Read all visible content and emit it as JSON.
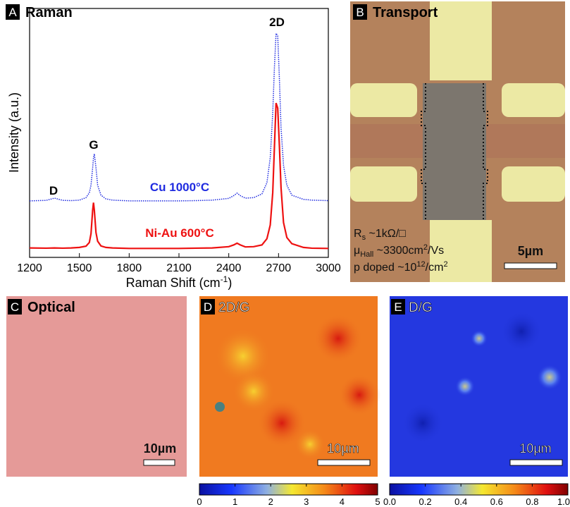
{
  "chart_data": {
    "type": "line",
    "panel": "A",
    "title": "Raman",
    "ylabel": "Intensity (a.u.)",
    "xlabel": [
      "Raman Shift (cm",
      "-1",
      ")"
    ],
    "xlim": [
      1200,
      3000
    ],
    "xticks": [
      1200,
      1500,
      1800,
      2100,
      2400,
      2700,
      3000
    ],
    "ylim": [
      0,
      100
    ],
    "annotations": [
      "D",
      "G",
      "2D"
    ],
    "x": [
      1200,
      1300,
      1350,
      1400,
      1450,
      1500,
      1540,
      1560,
      1570,
      1580,
      1585,
      1590,
      1600,
      1610,
      1630,
      1660,
      1700,
      1800,
      1900,
      2000,
      2100,
      2200,
      2300,
      2400,
      2430,
      2450,
      2470,
      2500,
      2550,
      2600,
      2630,
      2650,
      2665,
      2675,
      2685,
      2695,
      2705,
      2715,
      2730,
      2750,
      2780,
      2850,
      2900,
      3000
    ],
    "series": [
      {
        "name": "Cu 1000°C",
        "color": "#1f2be0",
        "linestyle": "dotted",
        "values": [
          22.7,
          22.9,
          23.8,
          22.9,
          22.8,
          23.0,
          24,
          26,
          29,
          36,
          40,
          41.6,
          36,
          29,
          25,
          23.5,
          23.0,
          22.7,
          22.7,
          22.7,
          22.7,
          22.8,
          23.0,
          23.7,
          24.8,
          25.8,
          24.8,
          23.8,
          24.0,
          25.5,
          30,
          40,
          58,
          76,
          90,
          89,
          72,
          52,
          37,
          29,
          25,
          23.3,
          23,
          22.8
        ]
      },
      {
        "name": "Ni-Au 600°C",
        "color": "#ee1111",
        "linestyle": "solid",
        "values": [
          3.8,
          3.7,
          3.8,
          3.7,
          3.8,
          4.0,
          4.5,
          6.0,
          9.5,
          19,
          22,
          19,
          10,
          6.5,
          4.6,
          4.0,
          3.8,
          3.6,
          3.6,
          3.6,
          3.6,
          3.7,
          3.8,
          4.3,
          5.0,
          5.7,
          5.0,
          4.2,
          4.3,
          5.0,
          7.5,
          13,
          26,
          44,
          62,
          60,
          45,
          28,
          14,
          8,
          5.5,
          4.0,
          3.7,
          3.6
        ]
      }
    ]
  },
  "panels": {
    "B": {
      "panel": "B",
      "title": "Transport",
      "rs": [
        "R",
        "s",
        " ~1kΩ/□"
      ],
      "mu": [
        "μ",
        "Hall",
        " ~3300cm",
        "2",
        "/Vs"
      ],
      "doping": [
        "p doped ~10",
        "12",
        "/cm",
        "2"
      ],
      "scale": "5µm"
    },
    "C": {
      "panel": "C",
      "title": "Optical",
      "scale": "10µm"
    },
    "D": {
      "panel": "D",
      "title": "2D/G",
      "scale": "10µm",
      "colorbar": {
        "lim": [
          0,
          5
        ],
        "ticks": [
          0,
          1,
          2,
          3,
          4,
          5
        ]
      }
    },
    "E": {
      "panel": "E",
      "title": "D/G",
      "scale": "10µm",
      "colorbar": {
        "lim": [
          0,
          1
        ],
        "ticks": [
          {
            "value": 0,
            "label": "0.0"
          },
          {
            "value": 0.2,
            "label": "0.2"
          },
          {
            "value": 0.4,
            "label": "0.4"
          },
          {
            "value": 0.6,
            "label": "0.6"
          },
          {
            "value": 0.8,
            "label": "0.8"
          },
          {
            "value": 1,
            "label": "1.0"
          }
        ]
      }
    }
  }
}
